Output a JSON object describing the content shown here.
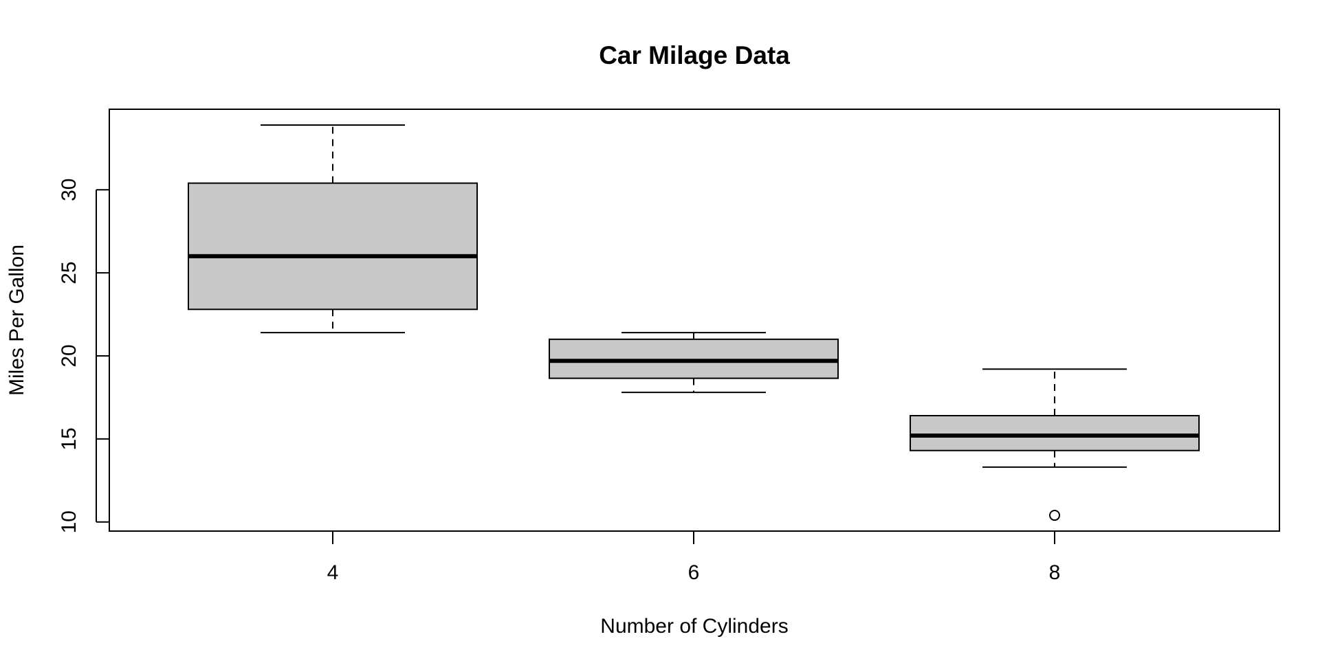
{
  "chart_data": {
    "type": "boxplot",
    "title": "Car Milage Data",
    "xlabel": "Number of Cylinders",
    "ylabel": "Miles Per Gallon",
    "categories": [
      "4",
      "6",
      "8"
    ],
    "ylim": [
      9.45,
      34.85
    ],
    "yticks": [
      10,
      15,
      20,
      25,
      30
    ],
    "box_fill": "#c8c8c8",
    "boxes": [
      {
        "category": "4",
        "whisker_low": 21.4,
        "q1": 22.8,
        "median": 26.0,
        "q3": 30.4,
        "whisker_high": 33.9,
        "outliers": []
      },
      {
        "category": "6",
        "whisker_low": 17.8,
        "q1": 18.65,
        "median": 19.7,
        "q3": 21.0,
        "whisker_high": 21.4,
        "outliers": []
      },
      {
        "category": "8",
        "whisker_low": 13.3,
        "q1": 14.3,
        "median": 15.2,
        "q3": 16.4,
        "whisker_high": 19.2,
        "outliers": [
          10.4
        ]
      }
    ],
    "grid": false,
    "legend": "none"
  }
}
